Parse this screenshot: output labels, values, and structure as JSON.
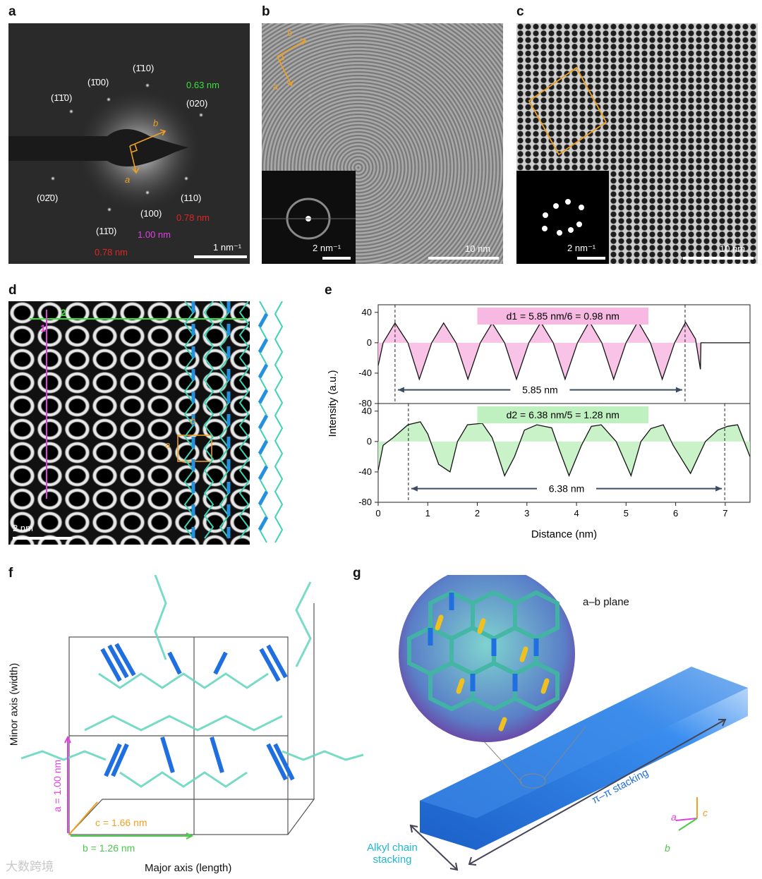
{
  "panels": {
    "a": {
      "label": "a",
      "spots": [
        "(1̄10)",
        "(1̄00)",
        "(1̄1̄0)",
        "(020)",
        "(02̄0)",
        "(110)",
        "(100)",
        "(11̄0)"
      ],
      "d_green": "0.63 nm",
      "d_red_1": "0.78 nm",
      "d_red_2": "0.78 nm",
      "d_magenta": "1.00 nm",
      "axis_a": "a",
      "axis_b": "b",
      "scale": "1 nm⁻¹"
    },
    "b": {
      "label": "b",
      "axis_a": "a",
      "axis_b": "b",
      "inset_scale": "2 nm⁻¹",
      "scale": "10 nm"
    },
    "c": {
      "label": "c",
      "inset_scale": "2 nm⁻¹",
      "scale": "10 nm"
    },
    "d": {
      "label": "d",
      "line1": "1",
      "line2": "2",
      "axis_a": "a",
      "axis_b": "b",
      "scale": "2 nm"
    },
    "e": {
      "label": "e"
    },
    "f": {
      "label": "f",
      "a_len": "a = 1.00 nm",
      "b_len": "b = 1.26 nm",
      "c_len": "c = 1.66 nm",
      "ylabel": "Minor axis (width)",
      "xlabel": "Major axis (length)"
    },
    "g": {
      "label": "g",
      "plane": "a–b plane",
      "stack1": "π–π stacking",
      "stack2_l1": "Alkyl chain",
      "stack2_l2": "stacking",
      "ax_a": "a",
      "ax_b": "b",
      "ax_c": "c"
    }
  },
  "watermark": "大数跨境",
  "chart_data": {
    "type": "line",
    "xlabel": "Distance (nm)",
    "ylabel": "Intensity (a.u.)",
    "xlim": [
      0,
      7.5
    ],
    "xticks": [
      0,
      1,
      2,
      3,
      4,
      5,
      6,
      7
    ],
    "ylim_each": [
      -80,
      50
    ],
    "yticks": [
      -80,
      -40,
      0,
      40
    ],
    "series": [
      {
        "name": "d1 = 5.85 nm/6 = 0.98 nm",
        "color": "#ee5fb8",
        "fill": "#f7b8e2",
        "x": [
          0,
          0.1,
          0.34,
          0.6,
          0.83,
          1.08,
          1.32,
          1.57,
          1.81,
          2.06,
          2.3,
          2.55,
          2.79,
          3.04,
          3.28,
          3.53,
          3.77,
          4.02,
          4.26,
          4.51,
          4.75,
          5.0,
          5.24,
          5.49,
          5.73,
          5.98,
          6.2,
          6.4,
          6.5,
          6.51,
          7.5
        ],
        "y": [
          -30,
          0,
          26,
          0,
          -48,
          0,
          26,
          0,
          -48,
          0,
          26,
          0,
          -48,
          0,
          27,
          0,
          -48,
          0,
          28,
          0,
          -48,
          0,
          28,
          0,
          -48,
          0,
          27,
          5,
          -35,
          0,
          0
        ],
        "marker_start": 0.34,
        "marker_end": 6.19,
        "span_label": "5.85 nm"
      },
      {
        "name": "d2 = 6.38 nm/5 = 1.28 nm",
        "color": "#5ccf5c",
        "fill": "#bff0bf",
        "x": [
          0,
          0.1,
          0.3,
          0.6,
          0.85,
          1.0,
          1.22,
          1.45,
          1.6,
          1.8,
          2.1,
          2.3,
          2.55,
          2.75,
          2.95,
          3.2,
          3.5,
          3.65,
          3.85,
          4.1,
          4.3,
          4.5,
          4.8,
          5.1,
          5.3,
          5.5,
          5.75,
          5.95,
          6.3,
          6.6,
          6.85,
          7.05,
          7.25,
          7.5
        ],
        "y": [
          -38,
          -5,
          5,
          22,
          26,
          10,
          -30,
          -40,
          0,
          22,
          24,
          5,
          -45,
          -20,
          15,
          22,
          18,
          -10,
          -45,
          -5,
          20,
          22,
          0,
          -45,
          0,
          17,
          22,
          -5,
          -42,
          0,
          15,
          20,
          22,
          -20
        ],
        "marker_start": 0.61,
        "marker_end": 6.99,
        "span_label": "6.38 nm"
      }
    ]
  }
}
